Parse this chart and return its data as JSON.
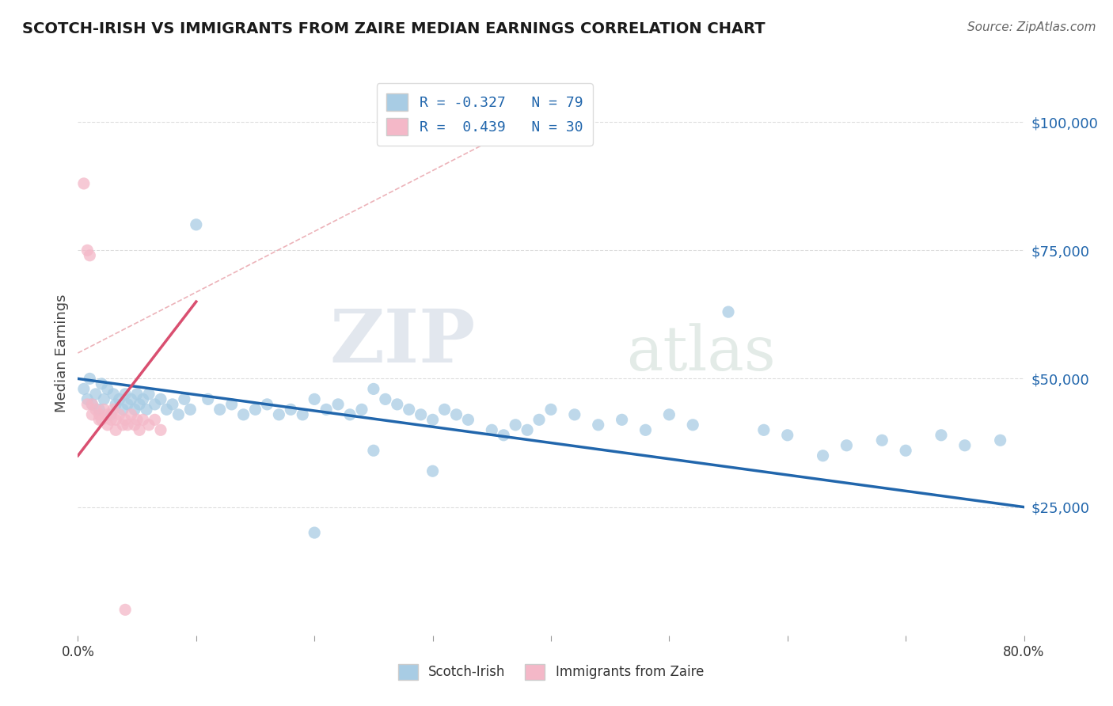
{
  "title": "SCOTCH-IRISH VS IMMIGRANTS FROM ZAIRE MEDIAN EARNINGS CORRELATION CHART",
  "source": "Source: ZipAtlas.com",
  "ylabel": "Median Earnings",
  "x_min": 0.0,
  "x_max": 0.8,
  "y_min": 0,
  "y_max": 110000,
  "yticks": [
    25000,
    50000,
    75000,
    100000
  ],
  "ytick_labels": [
    "$25,000",
    "$50,000",
    "$75,000",
    "$100,000"
  ],
  "legend_labels": [
    "Scotch-Irish",
    "Immigrants from Zaire"
  ],
  "blue_R": -0.327,
  "blue_N": 79,
  "pink_R": 0.439,
  "pink_N": 30,
  "blue_color": "#a8cce4",
  "pink_color": "#f4b8c8",
  "blue_line_color": "#2166ac",
  "pink_line_color": "#d94f70",
  "blue_scatter_x": [
    0.005,
    0.008,
    0.01,
    0.012,
    0.015,
    0.018,
    0.02,
    0.022,
    0.025,
    0.028,
    0.03,
    0.032,
    0.035,
    0.038,
    0.04,
    0.042,
    0.045,
    0.048,
    0.05,
    0.052,
    0.055,
    0.058,
    0.06,
    0.065,
    0.07,
    0.075,
    0.08,
    0.085,
    0.09,
    0.095,
    0.1,
    0.11,
    0.12,
    0.13,
    0.14,
    0.15,
    0.16,
    0.17,
    0.18,
    0.19,
    0.2,
    0.21,
    0.22,
    0.23,
    0.24,
    0.25,
    0.26,
    0.27,
    0.28,
    0.29,
    0.3,
    0.31,
    0.32,
    0.33,
    0.35,
    0.36,
    0.37,
    0.38,
    0.39,
    0.4,
    0.42,
    0.44,
    0.46,
    0.48,
    0.5,
    0.52,
    0.55,
    0.58,
    0.6,
    0.63,
    0.65,
    0.68,
    0.7,
    0.73,
    0.75,
    0.78,
    0.3,
    0.2,
    0.25
  ],
  "blue_scatter_y": [
    48000,
    46000,
    50000,
    45000,
    47000,
    44000,
    49000,
    46000,
    48000,
    43000,
    47000,
    45000,
    46000,
    44000,
    47000,
    45000,
    46000,
    44000,
    47000,
    45000,
    46000,
    44000,
    47000,
    45000,
    46000,
    44000,
    45000,
    43000,
    46000,
    44000,
    80000,
    46000,
    44000,
    45000,
    43000,
    44000,
    45000,
    43000,
    44000,
    43000,
    46000,
    44000,
    45000,
    43000,
    44000,
    48000,
    46000,
    45000,
    44000,
    43000,
    42000,
    44000,
    43000,
    42000,
    40000,
    39000,
    41000,
    40000,
    42000,
    44000,
    43000,
    41000,
    42000,
    40000,
    43000,
    41000,
    63000,
    40000,
    39000,
    35000,
    37000,
    38000,
    36000,
    39000,
    37000,
    38000,
    32000,
    20000,
    36000
  ],
  "pink_scatter_x": [
    0.005,
    0.008,
    0.01,
    0.012,
    0.015,
    0.018,
    0.02,
    0.022,
    0.025,
    0.028,
    0.03,
    0.032,
    0.035,
    0.038,
    0.04,
    0.042,
    0.045,
    0.048,
    0.05,
    0.052,
    0.055,
    0.06,
    0.065,
    0.07,
    0.008,
    0.012,
    0.018,
    0.025,
    0.032,
    0.04
  ],
  "pink_scatter_y": [
    88000,
    75000,
    74000,
    45000,
    44000,
    43000,
    42000,
    44000,
    43000,
    42000,
    44000,
    42000,
    43000,
    41000,
    42000,
    41000,
    43000,
    41000,
    42000,
    40000,
    42000,
    41000,
    42000,
    40000,
    45000,
    43000,
    42000,
    41000,
    40000,
    5000
  ],
  "diag_line_color": "#e8a0a8",
  "watermark_zip": "ZIP",
  "watermark_atlas": "atlas",
  "watermark_color": "#d8d8d8",
  "background_color": "#ffffff",
  "grid_color": "#dddddd"
}
